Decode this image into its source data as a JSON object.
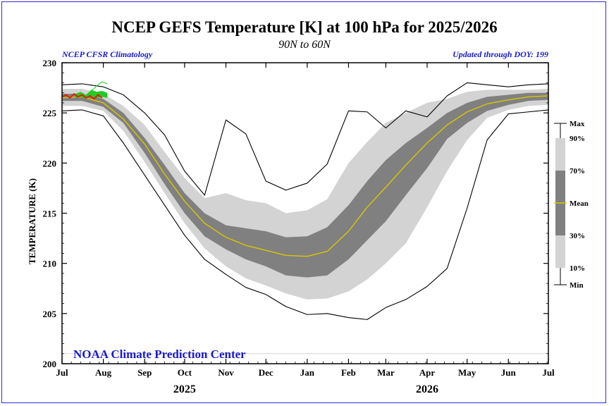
{
  "header": {
    "title": "NCEP GEFS Temperature [K] at 100 hPa for 2025/2026",
    "subtitle": "90N to 60N",
    "left_note": "NCEP CFSR Climatology",
    "right_note": "Updated through DOY: 199",
    "credit": "NOAA Climate Prediction Center"
  },
  "colors": {
    "frame": "#2b2bd6",
    "band_10_90": "#d3d3d3",
    "band_30_70": "#808080",
    "mean": "#d8c800",
    "minmax": "#000000",
    "observed": "#dd2200",
    "forecast_ensemble": "#22cc22",
    "note_text": "#1a1acc"
  },
  "chart_data": {
    "type": "line",
    "title": "NCEP GEFS Temperature [K] at 100 hPa for 2025/2026",
    "subtitle": "90N to 60N",
    "ylabel": "TEMPERATURE (K)",
    "xlabel": "",
    "ylim": [
      200,
      230
    ],
    "xlim_day": [
      0,
      365
    ],
    "yticks": [
      200,
      205,
      210,
      215,
      220,
      225,
      230
    ],
    "months": [
      "Jul",
      "Aug",
      "Sep",
      "Oct",
      "Nov",
      "Dec",
      "Jan",
      "Feb",
      "Mar",
      "Apr",
      "May",
      "Jun",
      "Jul"
    ],
    "month_days": [
      0,
      31,
      62,
      92,
      123,
      153,
      184,
      215,
      243,
      274,
      304,
      335,
      365
    ],
    "years": [
      {
        "label": "2025",
        "day": 92
      },
      {
        "label": "2026",
        "day": 274
      }
    ],
    "climatology": {
      "day": [
        0,
        15,
        31,
        46,
        62,
        77,
        92,
        107,
        123,
        138,
        153,
        168,
        184,
        199,
        215,
        229,
        243,
        258,
        274,
        289,
        304,
        319,
        335,
        350,
        365
      ],
      "max": [
        227.8,
        227.9,
        227.6,
        226.8,
        225.0,
        222.8,
        219.2,
        216.8,
        224.3,
        222.9,
        218.2,
        217.3,
        218.0,
        219.9,
        225.2,
        225.1,
        223.5,
        225.2,
        224.6,
        226.7,
        228.0,
        227.8,
        227.6,
        227.8,
        227.9
      ],
      "p90": [
        227.4,
        227.4,
        226.9,
        225.7,
        223.8,
        221.1,
        218.5,
        216.5,
        217.0,
        216.3,
        216.0,
        215.0,
        215.3,
        216.4,
        220.0,
        222.1,
        224.0,
        225.0,
        226.0,
        226.4,
        227.1,
        227.3,
        227.3,
        227.3,
        227.4
      ],
      "p70": [
        226.9,
        226.9,
        226.4,
        225.0,
        222.5,
        219.8,
        217.0,
        215.0,
        213.8,
        213.5,
        213.2,
        212.6,
        212.7,
        213.6,
        215.8,
        218.2,
        220.3,
        222.0,
        223.5,
        225.0,
        226.0,
        226.6,
        226.8,
        227.0,
        227.0
      ],
      "mean": [
        226.5,
        226.6,
        226.0,
        224.4,
        221.9,
        218.9,
        216.2,
        214.0,
        212.6,
        211.8,
        211.3,
        210.8,
        210.7,
        211.2,
        213.2,
        215.6,
        217.6,
        219.8,
        222.0,
        223.8,
        225.1,
        225.9,
        226.3,
        226.6,
        226.7
      ],
      "p30": [
        226.2,
        226.2,
        225.6,
        224.0,
        221.0,
        217.9,
        215.0,
        212.7,
        211.4,
        210.4,
        209.7,
        208.8,
        208.6,
        208.8,
        210.4,
        212.3,
        214.2,
        216.8,
        219.5,
        222.4,
        224.0,
        225.2,
        225.8,
        226.2,
        226.3
      ],
      "p10": [
        225.7,
        225.7,
        225.2,
        223.2,
        220.1,
        217.0,
        214.0,
        211.5,
        209.7,
        208.5,
        207.8,
        207.0,
        206.4,
        206.5,
        207.2,
        208.4,
        210.0,
        212.0,
        215.6,
        219.2,
        222.3,
        224.5,
        225.3,
        225.7,
        225.8
      ],
      "min": [
        225.2,
        225.3,
        224.7,
        222.0,
        218.8,
        215.8,
        212.8,
        210.4,
        208.9,
        207.6,
        206.9,
        205.7,
        204.9,
        205.0,
        204.6,
        204.4,
        205.6,
        206.4,
        207.7,
        209.5,
        215.5,
        222.3,
        224.9,
        225.1,
        225.3
      ]
    },
    "observed_2025": {
      "day": [
        0,
        3,
        6,
        9,
        12,
        15,
        18,
        21,
        24,
        27,
        30
      ],
      "value": [
        226.6,
        226.8,
        226.5,
        226.9,
        226.6,
        226.8,
        226.5,
        226.7,
        226.4,
        226.8,
        226.5
      ]
    },
    "forecast_ensemble": {
      "day_range": [
        10,
        34
      ],
      "upper": [
        226.9,
        227.1,
        226.8,
        227.3,
        227.1,
        227.2,
        227.0
      ],
      "lower": [
        226.5,
        226.6,
        226.4,
        226.7,
        226.5,
        226.6,
        226.5
      ],
      "outlier_day": [
        22,
        27,
        30,
        34
      ],
      "outlier_value": [
        227.2,
        227.8,
        228.1,
        227.9
      ]
    },
    "legend": {
      "placement": "right",
      "labels": [
        "Max",
        "90%",
        "70%",
        "Mean",
        "30%",
        "10%",
        "Min"
      ]
    }
  }
}
